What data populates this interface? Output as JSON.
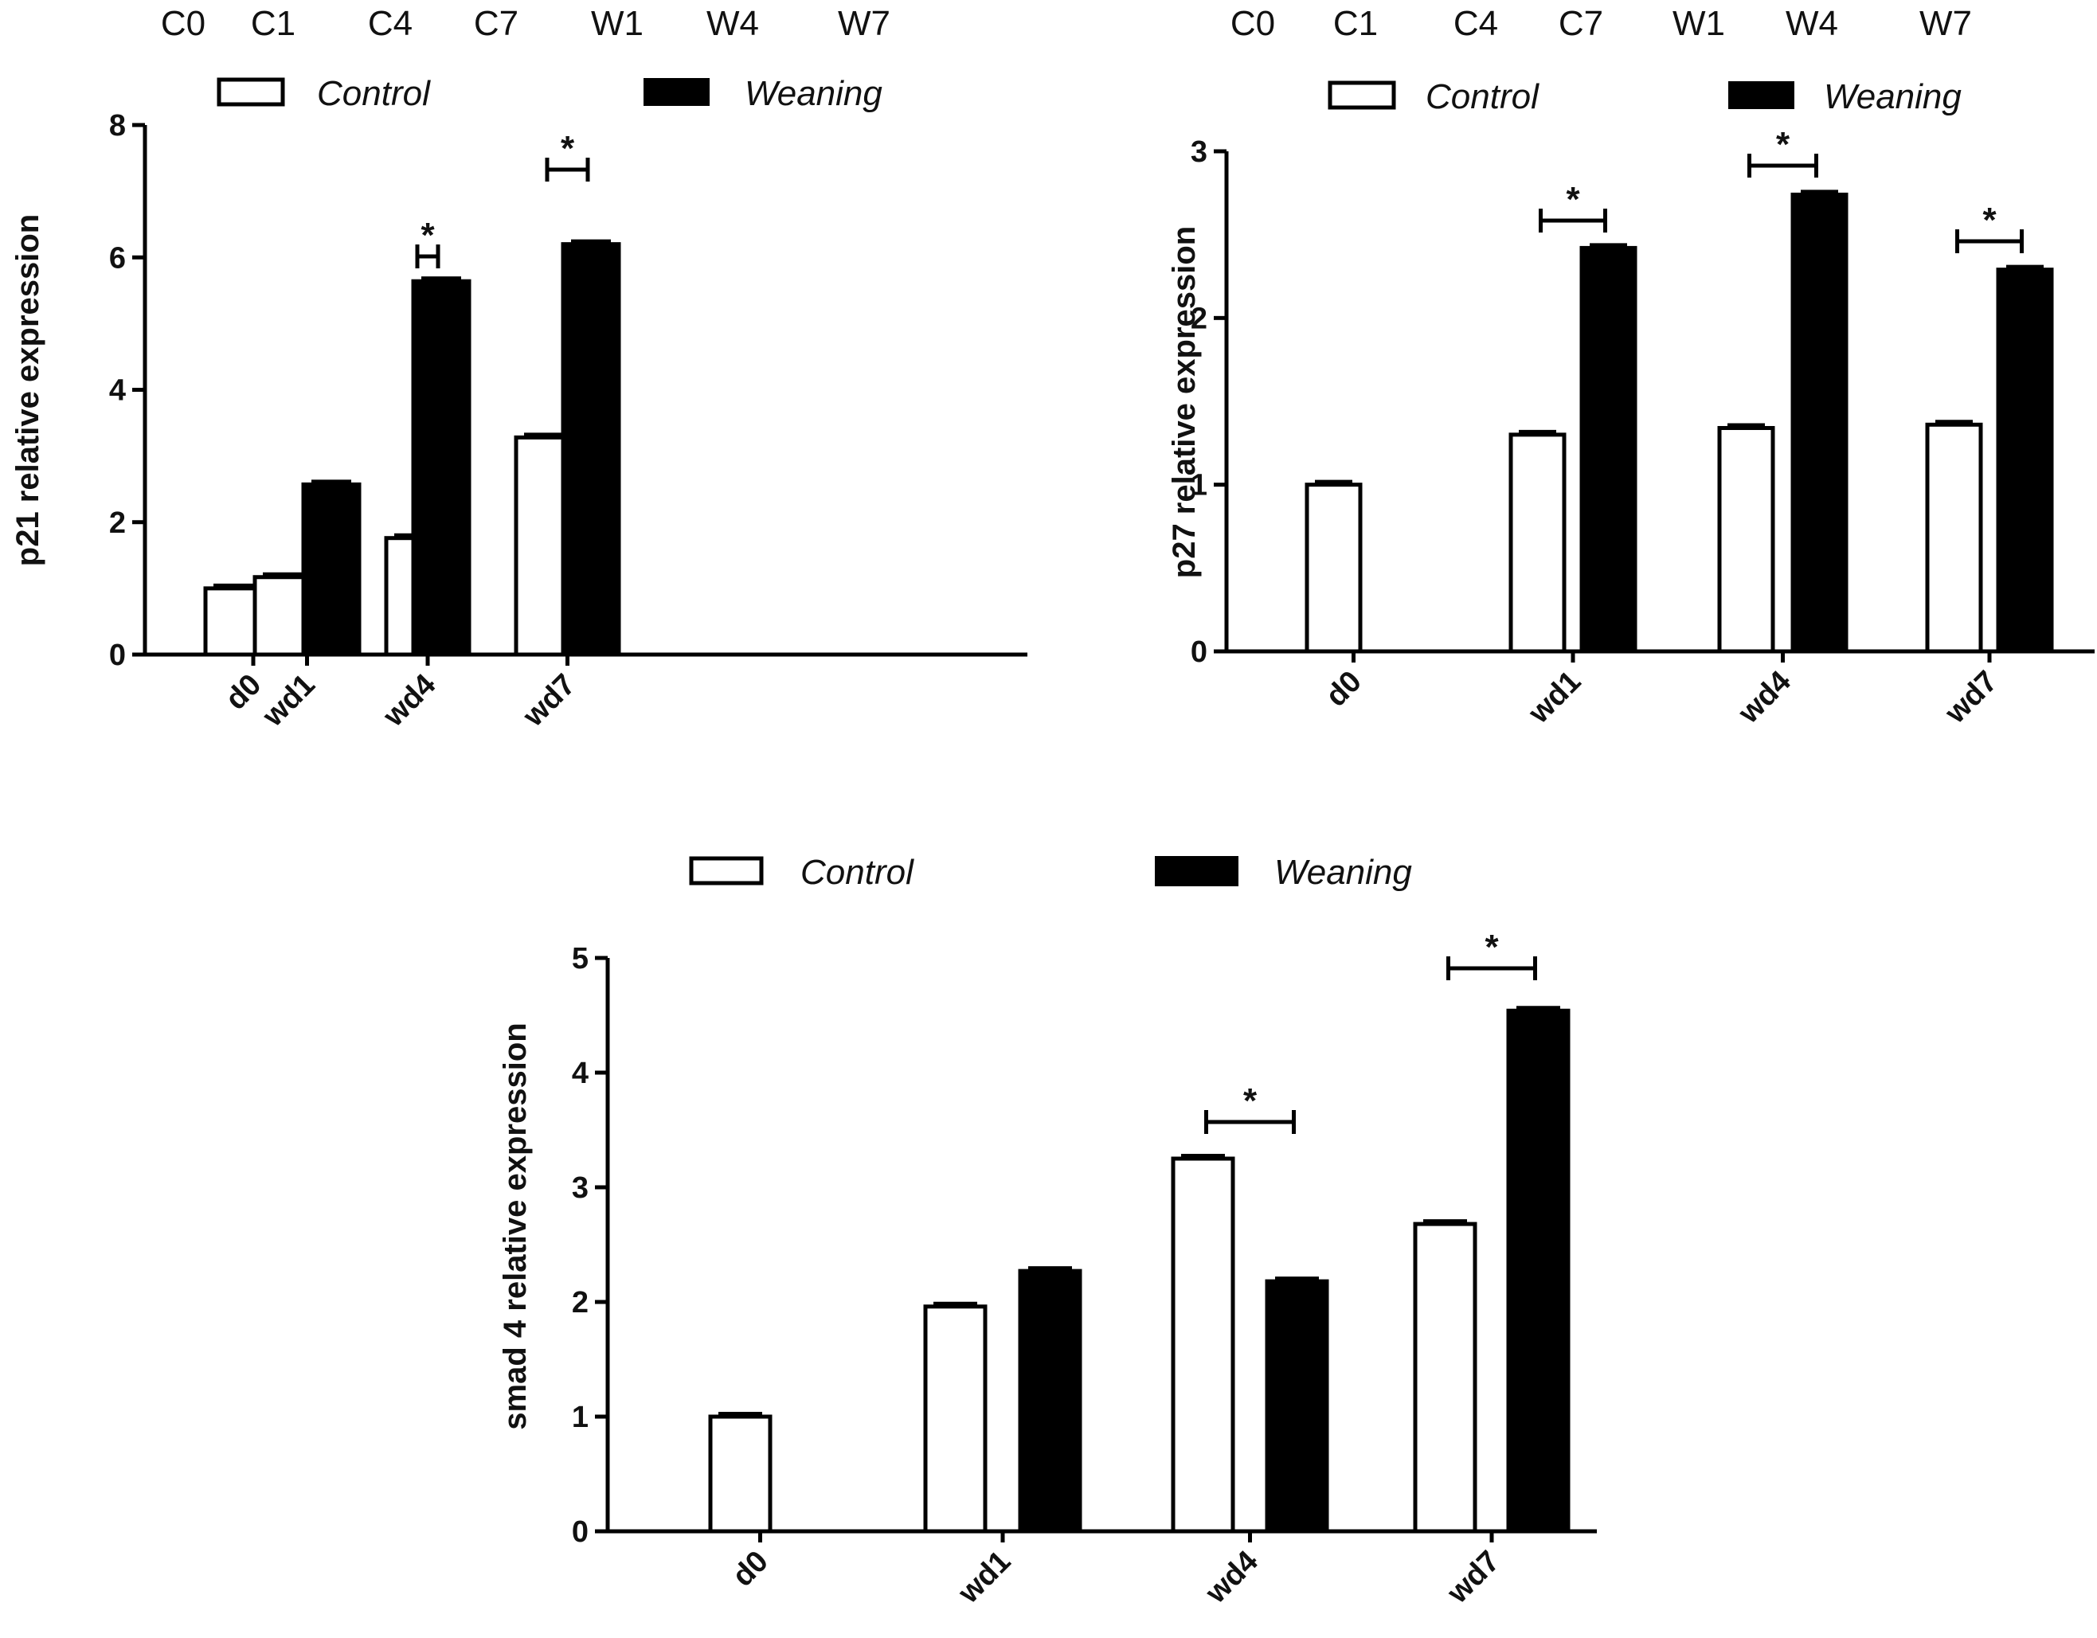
{
  "legend": {
    "control_label": "Control",
    "weaning_label": "Weaning"
  },
  "colors": {
    "control_fill": "#ffffff",
    "weaning_fill": "#000000",
    "stroke": "#000000"
  },
  "chart_data": [
    {
      "type": "bar",
      "sample_labels": [
        "C0",
        "C1",
        "C4",
        "C7",
        "W1",
        "W4",
        "W7"
      ],
      "categories": [
        "d0",
        "wd1",
        "wd4",
        "wd7"
      ],
      "series": [
        {
          "name": "Control",
          "values": [
            1.0,
            1.17,
            1.76,
            3.28
          ]
        },
        {
          "name": "Weaning",
          "values": [
            null,
            2.57,
            5.64,
            6.2
          ]
        }
      ],
      "ylabel": "p21 relative expression",
      "ylim": [
        0,
        8
      ],
      "yticks": [
        "0",
        "2",
        "4",
        "6",
        "8"
      ],
      "significance": [
        {
          "category": "wd4",
          "label": "*"
        },
        {
          "category": "wd7",
          "label": "*"
        }
      ]
    },
    {
      "type": "bar",
      "sample_labels": [
        "C0",
        "C1",
        "C4",
        "C7",
        "W1",
        "W4",
        "W7"
      ],
      "categories": [
        "d0",
        "wd1",
        "wd4",
        "wd7"
      ],
      "series": [
        {
          "name": "Control",
          "values": [
            1.0,
            1.3,
            1.34,
            1.36
          ]
        },
        {
          "name": "Weaning",
          "values": [
            null,
            2.42,
            2.74,
            2.29
          ]
        }
      ],
      "ylabel": "p27 relative expression",
      "ylim": [
        0,
        3
      ],
      "yticks": [
        "0",
        "1",
        "2",
        "3"
      ],
      "significance": [
        {
          "category": "wd1",
          "label": "*"
        },
        {
          "category": "wd4",
          "label": "*"
        },
        {
          "category": "wd7",
          "label": "*"
        }
      ]
    },
    {
      "type": "bar",
      "categories": [
        "d0",
        "wd1",
        "wd4",
        "wd7"
      ],
      "series": [
        {
          "name": "Control",
          "values": [
            1.0,
            1.96,
            3.25,
            2.68
          ]
        },
        {
          "name": "Weaning",
          "values": [
            null,
            2.27,
            2.18,
            4.54
          ]
        }
      ],
      "ylabel": "smad 4 relative expression",
      "ylim": [
        0,
        5
      ],
      "yticks": [
        "0",
        "1",
        "2",
        "3",
        "4",
        "5"
      ],
      "significance": [
        {
          "category": "wd4",
          "label": "*"
        },
        {
          "category": "wd7",
          "label": "*"
        }
      ]
    }
  ]
}
